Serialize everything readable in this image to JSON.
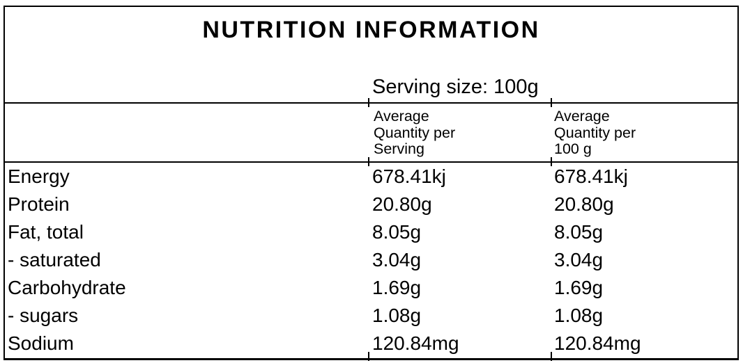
{
  "panel": {
    "title": "NUTRITION INFORMATION",
    "serving_size": "Serving size: 100g",
    "header": {
      "per_serving": "Average\nQuantity per\nServing",
      "per_100g": "Average\nQuantity per\n100 g"
    },
    "rows": [
      {
        "label": "Energy",
        "per_serving": "678.41kj",
        "per_100g": "678.41kj"
      },
      {
        "label": "Protein",
        "per_serving": "20.80g",
        "per_100g": "20.80g"
      },
      {
        "label": "Fat, total",
        "per_serving": "8.05g",
        "per_100g": "8.05g"
      },
      {
        "label": "- saturated",
        "per_serving": "3.04g",
        "per_100g": "3.04g"
      },
      {
        "label": "Carbohydrate",
        "per_serving": "1.69g",
        "per_100g": "1.69g"
      },
      {
        "label": "- sugars",
        "per_serving": "1.08g",
        "per_100g": "1.08g"
      },
      {
        "label": "Sodium",
        "per_serving": "120.84mg",
        "per_100g": "120.84mg"
      }
    ],
    "colors": {
      "border": "#000000",
      "text": "#000000",
      "background": "#ffffff"
    }
  }
}
